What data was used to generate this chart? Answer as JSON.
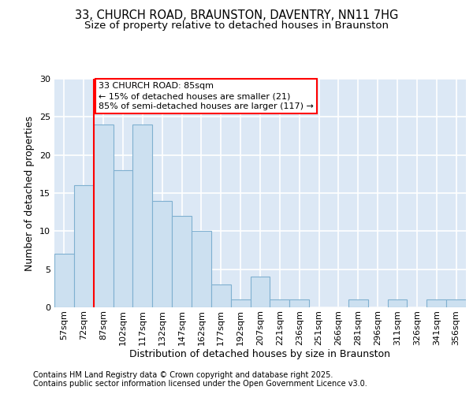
{
  "title_line1": "33, CHURCH ROAD, BRAUNSTON, DAVENTRY, NN11 7HG",
  "title_line2": "Size of property relative to detached houses in Braunston",
  "xlabel": "Distribution of detached houses by size in Braunston",
  "ylabel": "Number of detached properties",
  "categories": [
    "57sqm",
    "72sqm",
    "87sqm",
    "102sqm",
    "117sqm",
    "132sqm",
    "147sqm",
    "162sqm",
    "177sqm",
    "192sqm",
    "207sqm",
    "221sqm",
    "236sqm",
    "251sqm",
    "266sqm",
    "281sqm",
    "296sqm",
    "311sqm",
    "326sqm",
    "341sqm",
    "356sqm"
  ],
  "values": [
    7,
    16,
    24,
    18,
    24,
    14,
    12,
    10,
    3,
    1,
    4,
    1,
    1,
    0,
    0,
    1,
    0,
    1,
    0,
    1,
    1
  ],
  "bar_color": "#cce0f0",
  "bar_edge_color": "#7fb0d0",
  "annotation_text_line1": "33 CHURCH ROAD: 85sqm",
  "annotation_text_line2": "← 15% of detached houses are smaller (21)",
  "annotation_text_line3": "85% of semi-detached houses are larger (117) →",
  "annotation_box_color": "white",
  "annotation_box_edge_color": "red",
  "vline_color": "red",
  "vline_x_index": 2,
  "ylim": [
    0,
    30
  ],
  "yticks": [
    0,
    5,
    10,
    15,
    20,
    25,
    30
  ],
  "background_color": "#dce8f5",
  "grid_color": "white",
  "footer_text": "Contains HM Land Registry data © Crown copyright and database right 2025.\nContains public sector information licensed under the Open Government Licence v3.0.",
  "title_fontsize": 10.5,
  "subtitle_fontsize": 9.5,
  "axis_label_fontsize": 9,
  "tick_fontsize": 8,
  "annotation_fontsize": 8,
  "footer_fontsize": 7
}
